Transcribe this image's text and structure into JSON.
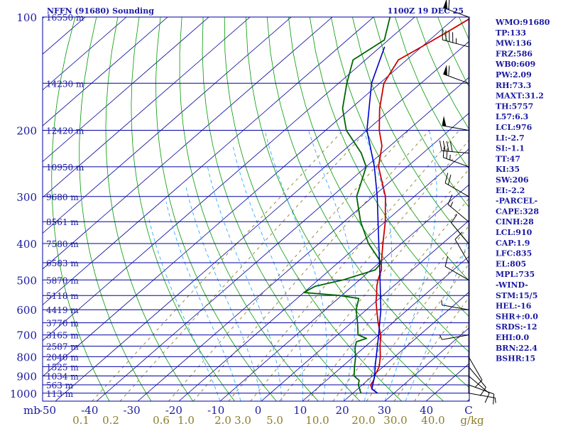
{
  "chart_data": {
    "type": "skew-t",
    "title": "NFFN (91680) Sounding",
    "time": "1100Z 19 DEC 25",
    "pressure_label": "mb",
    "pressure_ticks": [
      100,
      200,
      300,
      400,
      500,
      600,
      700,
      800,
      900,
      1000
    ],
    "height_labels": [
      {
        "p": 100,
        "text": "16550 m"
      },
      {
        "p": 150,
        "text": "14230 m"
      },
      {
        "p": 200,
        "text": "12420 m"
      },
      {
        "p": 250,
        "text": "10950 m"
      },
      {
        "p": 300,
        "text": "9680 m"
      },
      {
        "p": 350,
        "text": "8561 m"
      },
      {
        "p": 400,
        "text": "7580 m"
      },
      {
        "p": 450,
        "text": "6583 m"
      },
      {
        "p": 500,
        "text": "5870 m"
      },
      {
        "p": 550,
        "text": "5118 m"
      },
      {
        "p": 600,
        "text": "4419 m"
      },
      {
        "p": 650,
        "text": "3770 m"
      },
      {
        "p": 700,
        "text": "3165 m"
      },
      {
        "p": 750,
        "text": "2587 m"
      },
      {
        "p": 800,
        "text": "2040 m"
      },
      {
        "p": 850,
        "text": "1525 m"
      },
      {
        "p": 900,
        "text": "1034 m"
      },
      {
        "p": 950,
        "text": "563 m"
      },
      {
        "p": 1000,
        "text": "113 m"
      }
    ],
    "temperature_ticks": [
      "-50",
      "-40",
      "-30",
      "-20",
      "-10",
      "0",
      "10",
      "20",
      "30",
      "40",
      "C"
    ],
    "mixing_ratio_labels": [
      "0.1",
      "0.2",
      "0.6",
      "1.0",
      "2.0",
      "3.0",
      "5.0",
      "10.0",
      "20.0",
      "30.0",
      "40.0",
      "g/kg"
    ],
    "temperature_profile": [
      [
        1000,
        26
      ],
      [
        975,
        23.5
      ],
      [
        950,
        22
      ],
      [
        925,
        21.5
      ],
      [
        900,
        20.5
      ],
      [
        850,
        19
      ],
      [
        800,
        16.5
      ],
      [
        750,
        13.5
      ],
      [
        700,
        10.5
      ],
      [
        650,
        6.5
      ],
      [
        600,
        2.5
      ],
      [
        570,
        0
      ],
      [
        550,
        -1.5
      ],
      [
        520,
        -4
      ],
      [
        500,
        -5.5
      ],
      [
        470,
        -7.5
      ],
      [
        450,
        -9.5
      ],
      [
        400,
        -14.5
      ],
      [
        350,
        -20
      ],
      [
        300,
        -27
      ],
      [
        250,
        -37
      ],
      [
        220,
        -42
      ],
      [
        200,
        -47
      ],
      [
        175,
        -53
      ],
      [
        150,
        -59
      ],
      [
        130,
        -62
      ],
      [
        120,
        -60
      ],
      [
        110,
        -58
      ],
      [
        100,
        -56
      ]
    ],
    "dewpoint_profile": [
      [
        1000,
        22
      ],
      [
        975,
        20.5
      ],
      [
        950,
        19
      ],
      [
        925,
        18
      ],
      [
        900,
        15.5
      ],
      [
        850,
        13
      ],
      [
        800,
        10.5
      ],
      [
        760,
        8
      ],
      [
        730,
        6.5
      ],
      [
        715,
        8
      ],
      [
        700,
        5
      ],
      [
        650,
        1.5
      ],
      [
        600,
        -2.5
      ],
      [
        560,
        -5
      ],
      [
        550,
        -10.5
      ],
      [
        540,
        -20
      ],
      [
        520,
        -19
      ],
      [
        500,
        -14
      ],
      [
        470,
        -9
      ],
      [
        450,
        -9.5
      ],
      [
        400,
        -18
      ],
      [
        350,
        -26
      ],
      [
        300,
        -34
      ],
      [
        250,
        -40
      ],
      [
        230,
        -45
      ],
      [
        200,
        -55
      ],
      [
        175,
        -62
      ],
      [
        150,
        -68
      ],
      [
        130,
        -73
      ],
      [
        115,
        -71
      ],
      [
        100,
        -76
      ]
    ],
    "parcel_profile": [
      [
        1000,
        26
      ],
      [
        975,
        23.5
      ],
      [
        950,
        22.5
      ],
      [
        900,
        20.5
      ],
      [
        850,
        18
      ],
      [
        800,
        15.5
      ],
      [
        700,
        10
      ],
      [
        600,
        3.5
      ],
      [
        500,
        -5
      ],
      [
        400,
        -15.5
      ],
      [
        300,
        -29
      ],
      [
        250,
        -38
      ],
      [
        200,
        -50
      ],
      [
        150,
        -62
      ],
      [
        120,
        -69
      ]
    ],
    "indices": [
      "WMO:91680",
      "TP:133",
      "MW:136",
      "FRZ:586",
      "WB0:609",
      "PW:2.09",
      "RH:73.3",
      "MAXT:31.2",
      "TH:5757",
      "L57:6.3",
      "LCL:976",
      "LI:-2.7",
      "SI:-1.1",
      "TT:47",
      "KI:35",
      "SW:206",
      "EI:-2.2",
      "-PARCEL-",
      "CAPE:328",
      "CINH:28",
      "LCL:910",
      "CAP:1.9",
      "LFC:835",
      "EL:805",
      "MPL:735",
      "-WIND-",
      "STM:15/5",
      "HEL:-16",
      "SHR+:0.0",
      "SRDS:-12",
      "EHI:0.0",
      "BRN:22.4",
      "BSHR:15"
    ],
    "wind_barbs": [
      {
        "p": 100,
        "dir": 290,
        "spd": 60
      },
      {
        "p": 120,
        "dir": 285,
        "spd": 45
      },
      {
        "p": 150,
        "dir": 290,
        "spd": 60
      },
      {
        "p": 200,
        "dir": 280,
        "spd": 50
      },
      {
        "p": 230,
        "dir": 275,
        "spd": 40
      },
      {
        "p": 250,
        "dir": 290,
        "spd": 25
      },
      {
        "p": 300,
        "dir": 300,
        "spd": 20
      },
      {
        "p": 350,
        "dir": 310,
        "spd": 15
      },
      {
        "p": 400,
        "dir": 320,
        "spd": 10
      },
      {
        "p": 450,
        "dir": 330,
        "spd": 10
      },
      {
        "p": 500,
        "dir": 300,
        "spd": 10
      },
      {
        "p": 600,
        "dir": 280,
        "spd": 5
      },
      {
        "p": 700,
        "dir": 260,
        "spd": 5
      },
      {
        "p": 800,
        "dir": 150,
        "spd": 10
      },
      {
        "p": 850,
        "dir": 140,
        "spd": 10
      },
      {
        "p": 900,
        "dir": 130,
        "spd": 10
      },
      {
        "p": 950,
        "dir": 110,
        "spd": 10
      },
      {
        "p": 1000,
        "dir": 100,
        "spd": 5
      }
    ]
  },
  "colors": {
    "isobar": "#0000a0",
    "isotherm": "#0000a0",
    "dry_adiabat": "#009900",
    "moist_adiabat": "#33aaff",
    "mixing_ratio": "#8b7d2a",
    "temperature": "#cc0000",
    "dewpoint": "#006600",
    "parcel": "#0000cc",
    "text": "#1a1aa0",
    "wind": "#000000"
  }
}
